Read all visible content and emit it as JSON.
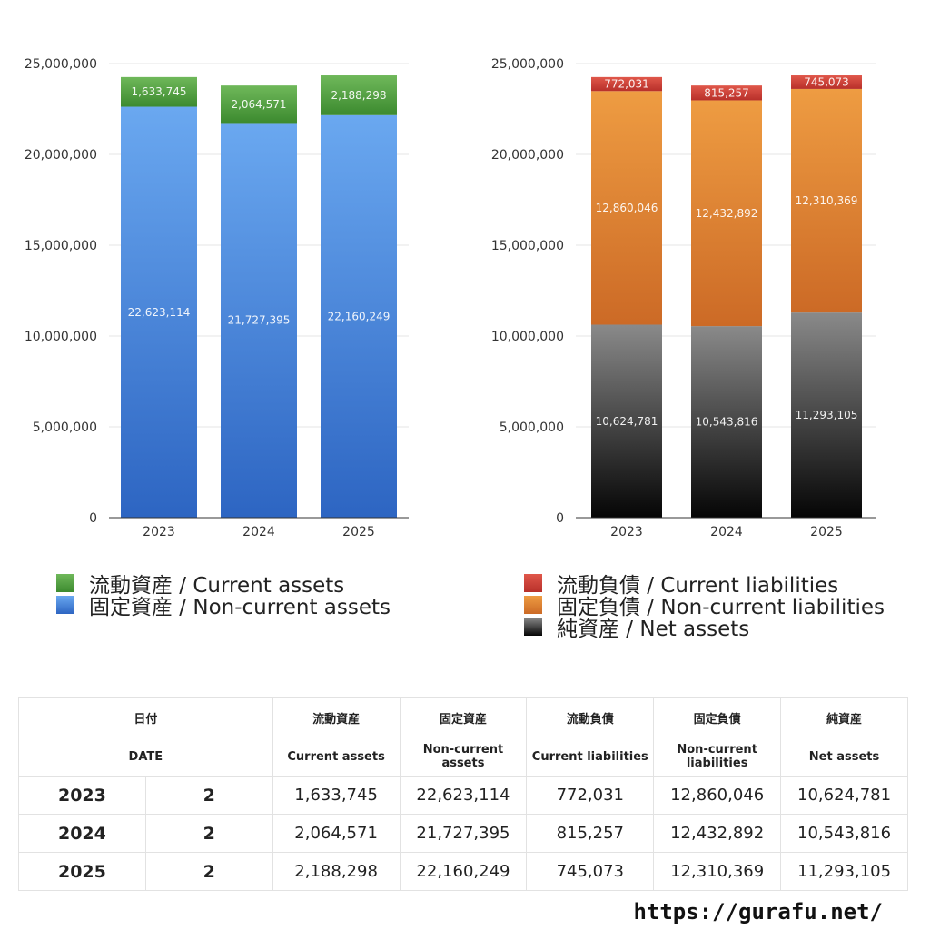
{
  "chart_data": [
    {
      "type": "bar",
      "stacked": true,
      "categories": [
        "2023",
        "2024",
        "2025"
      ],
      "ylim": [
        0,
        25000000
      ],
      "yticks": [
        0,
        5000000,
        10000000,
        15000000,
        20000000,
        25000000
      ],
      "ytick_labels": [
        "0",
        "5,000,000",
        "10,000,000",
        "15,000,000",
        "20,000,000",
        "25,000,000"
      ],
      "grid": true,
      "legend_position": "bottom",
      "series": [
        {
          "name": "固定資産 / Non-current assets",
          "values": [
            22623114,
            21727395,
            22160249
          ],
          "labels": [
            "22,623,114",
            "21,727,395",
            "22,160,249"
          ],
          "color_top": "#6aa8f0",
          "color_bottom": "#2d65c2"
        },
        {
          "name": "流動資産 / Current assets",
          "values": [
            1633745,
            2064571,
            2188298
          ],
          "labels": [
            "1,633,745",
            "2,064,571",
            "2,188,298"
          ],
          "color_top": "#6fb85a",
          "color_bottom": "#3c8a2f"
        }
      ],
      "legend_order": [
        1,
        0
      ]
    },
    {
      "type": "bar",
      "stacked": true,
      "categories": [
        "2023",
        "2024",
        "2025"
      ],
      "ylim": [
        0,
        25000000
      ],
      "yticks": [
        0,
        5000000,
        10000000,
        15000000,
        20000000,
        25000000
      ],
      "ytick_labels": [
        "0",
        "5,000,000",
        "10,000,000",
        "15,000,000",
        "20,000,000",
        "25,000,000"
      ],
      "grid": true,
      "legend_position": "bottom",
      "series": [
        {
          "name": "純資産 / Net assets",
          "values": [
            10624781,
            10543816,
            11293105
          ],
          "labels": [
            "10,624,781",
            "10,543,816",
            "11,293,105"
          ],
          "color_top": "#8a8a8a",
          "color_bottom": "#050505"
        },
        {
          "name": "固定負債 / Non-current liabilities",
          "values": [
            12860046,
            12432892,
            12310369
          ],
          "labels": [
            "12,860,046",
            "12,432,892",
            "12,310,369"
          ],
          "color_top": "#ee9c42",
          "color_bottom": "#cc6a26"
        },
        {
          "name": "流動負債 / Current liabilities",
          "values": [
            772031,
            815257,
            745073
          ],
          "labels": [
            "772,031",
            "815,257",
            "745,073"
          ],
          "color_top": "#e0574a",
          "color_bottom": "#b8302a"
        }
      ],
      "legend_order": [
        2,
        1,
        0
      ]
    }
  ],
  "table": {
    "header_ja": [
      "日付",
      "流動資産",
      "固定資産",
      "流動負債",
      "固定負債",
      "純資産"
    ],
    "header_en": [
      "DATE",
      "Current assets",
      "Non-current assets",
      "Current liabilities",
      "Non-current liabilities",
      "Net assets"
    ],
    "rows": [
      {
        "year": "2023",
        "count": "2",
        "values": [
          "1,633,745",
          "22,623,114",
          "772,031",
          "12,860,046",
          "10,624,781"
        ]
      },
      {
        "year": "2024",
        "count": "2",
        "values": [
          "2,064,571",
          "21,727,395",
          "815,257",
          "12,432,892",
          "10,543,816"
        ]
      },
      {
        "year": "2025",
        "count": "2",
        "values": [
          "2,188,298",
          "22,160,249",
          "745,073",
          "12,310,369",
          "11,293,105"
        ]
      }
    ]
  },
  "footer": {
    "site": "https://gurafu.net/"
  }
}
